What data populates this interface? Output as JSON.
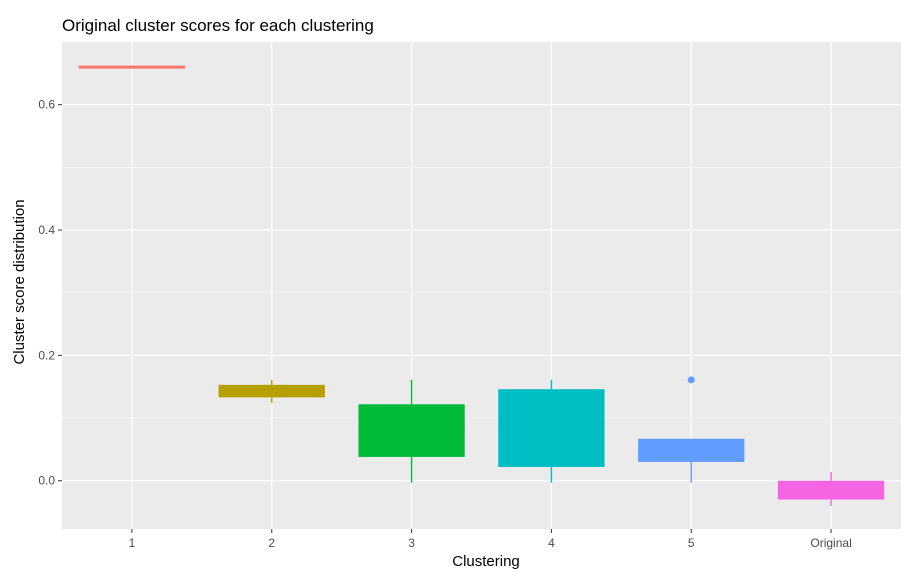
{
  "chart_data": {
    "type": "box",
    "title": "Original cluster scores for each clustering",
    "xlabel": "Clustering",
    "ylabel": "Cluster score distribution",
    "categories": [
      "1",
      "2",
      "3",
      "4",
      "5",
      "Original"
    ],
    "ylim": [
      -0.077,
      0.7
    ],
    "yticks": [
      0.0,
      0.2,
      0.4,
      0.6
    ],
    "ytick_labels": [
      "0.0",
      "0.2",
      "0.4",
      "0.6"
    ],
    "grid": true,
    "legend": "none",
    "boxes": [
      {
        "category": "1",
        "whisker_low": 0.66,
        "q1": 0.66,
        "median": 0.66,
        "q3": 0.66,
        "whisker_high": 0.66,
        "outliers": [],
        "color": "#F8766D"
      },
      {
        "category": "2",
        "whisker_low": 0.124,
        "q1": 0.133,
        "median": 0.14,
        "q3": 0.153,
        "whisker_high": 0.161,
        "outliers": [],
        "color": "#B79F00"
      },
      {
        "category": "3",
        "whisker_low": -0.003,
        "q1": 0.038,
        "median": 0.08,
        "q3": 0.122,
        "whisker_high": 0.161,
        "outliers": [],
        "color": "#00BA38"
      },
      {
        "category": "4",
        "whisker_low": -0.003,
        "q1": 0.022,
        "median": 0.084,
        "q3": 0.146,
        "whisker_high": 0.161,
        "outliers": [],
        "color": "#00BFC4"
      },
      {
        "category": "5",
        "whisker_low": -0.003,
        "q1": 0.03,
        "median": 0.048,
        "q3": 0.067,
        "whisker_high": 0.067,
        "outliers": [
          0.161
        ],
        "color": "#619CFF"
      },
      {
        "category": "Original",
        "whisker_low": -0.04,
        "q1": -0.03,
        "median": -0.013,
        "q3": 0.0,
        "whisker_high": 0.014,
        "outliers": [],
        "color": "#F564E3"
      }
    ]
  }
}
